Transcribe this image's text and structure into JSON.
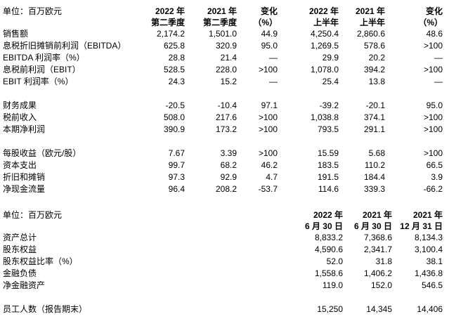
{
  "colors": {
    "background": "#ffffff",
    "text": "#000000"
  },
  "table1": {
    "unit_label": "单位：百万欧元",
    "col_headers": [
      {
        "line1": "2022 年",
        "line2": "第二季度"
      },
      {
        "line1": "2021 年",
        "line2": "第二季度"
      },
      {
        "line1": "变化",
        "line2": "（%）"
      },
      {
        "line1": "2022 年",
        "line2": "上半年"
      },
      {
        "line1": "2021 年",
        "line2": "上半年"
      },
      {
        "line1": "变化",
        "line2": "（%）"
      }
    ],
    "rows": [
      {
        "label": "销售额",
        "values": [
          "2,174.2",
          "1,501.0",
          "44.9",
          "4,250.4",
          "2,860.6",
          "48.6"
        ]
      },
      {
        "label": "息税折旧摊销前利润（EBITDA）",
        "values": [
          "625.8",
          "320.9",
          "95.0",
          "1,269.5",
          "578.6",
          ">100"
        ]
      },
      {
        "label": "EBITDA 利润率（%）",
        "values": [
          "28.8",
          "21.4",
          "—",
          "29.9",
          "20.2",
          "—"
        ]
      },
      {
        "label": "息税前利润（EBIT）",
        "values": [
          "528.5",
          "228.0",
          ">100",
          "1,078.0",
          "394.2",
          ">100"
        ]
      },
      {
        "label": "EBIT 利润率（%）",
        "values": [
          "24.3",
          "15.2",
          "—",
          "25.4",
          "13.8",
          "—"
        ]
      },
      {
        "spacer": true
      },
      {
        "label": "财务成果",
        "values": [
          "-20.5",
          "-10.4",
          "97.1",
          "-39.2",
          "-20.1",
          "95.0"
        ]
      },
      {
        "label": "税前收入",
        "values": [
          "508.0",
          "217.6",
          ">100",
          "1,038.8",
          "374.1",
          ">100"
        ]
      },
      {
        "label": "本期净利润",
        "values": [
          "390.9",
          "173.2",
          ">100",
          "793.5",
          "291.1",
          ">100"
        ]
      },
      {
        "spacer": true
      },
      {
        "label": "每股收益（欧元/股）",
        "values": [
          "7.67",
          "3.39",
          ">100",
          "15.59",
          "5.68",
          ">100"
        ]
      },
      {
        "label": "资本支出",
        "values": [
          "99.7",
          "68.2",
          "46.2",
          "183.5",
          "110.2",
          "66.5"
        ]
      },
      {
        "label": "折旧和摊销",
        "values": [
          "97.3",
          "92.9",
          "4.7",
          "191.5",
          "184.4",
          "3.9"
        ]
      },
      {
        "label": "净现金流量",
        "values": [
          "96.4",
          "208.2",
          "-53.7",
          "114.6",
          "339.3",
          "-66.2"
        ]
      }
    ]
  },
  "table2": {
    "unit_label": "单位：百万欧元",
    "col_headers": [
      {
        "line1": "2022 年",
        "line2": "6 月 30 日"
      },
      {
        "line1": "2021 年",
        "line2": "6 月 30 日"
      },
      {
        "line1": "2021 年",
        "line2": "12 月 31 日"
      }
    ],
    "rows": [
      {
        "label": "资产总计",
        "values": [
          "8,833.2",
          "7,368.6",
          "8,134.3"
        ]
      },
      {
        "label": "股东权益",
        "values": [
          "4,590.6",
          "2,341.7",
          "3,100.4"
        ]
      },
      {
        "label": "股东权益比率（%）",
        "values": [
          "52.0",
          "31.8",
          "38.1"
        ]
      },
      {
        "label": "金融负债",
        "values": [
          "1,558.6",
          "1,406.2",
          "1,436.8"
        ]
      },
      {
        "label": "净金融资产",
        "values": [
          "119.0",
          "152.0",
          "546.5"
        ]
      },
      {
        "spacer": true
      },
      {
        "label": "员工人数（报告期末）",
        "values": [
          "15,250",
          "14,345",
          "14,406"
        ]
      }
    ]
  }
}
